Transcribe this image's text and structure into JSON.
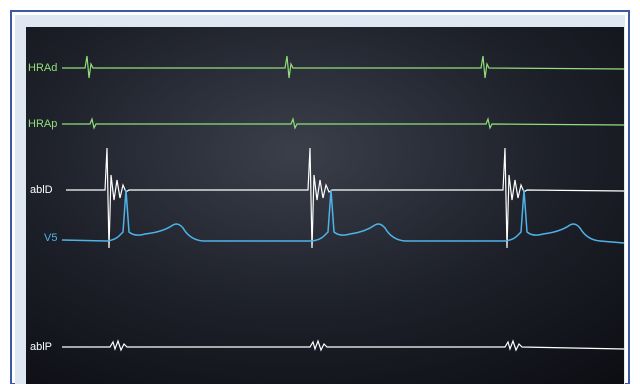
{
  "channels": [
    {
      "label": "HRAd"
    },
    {
      "label": "HRAp"
    },
    {
      "label": "ablD"
    },
    {
      "label": "V5"
    },
    {
      "label": "ablP"
    }
  ]
}
